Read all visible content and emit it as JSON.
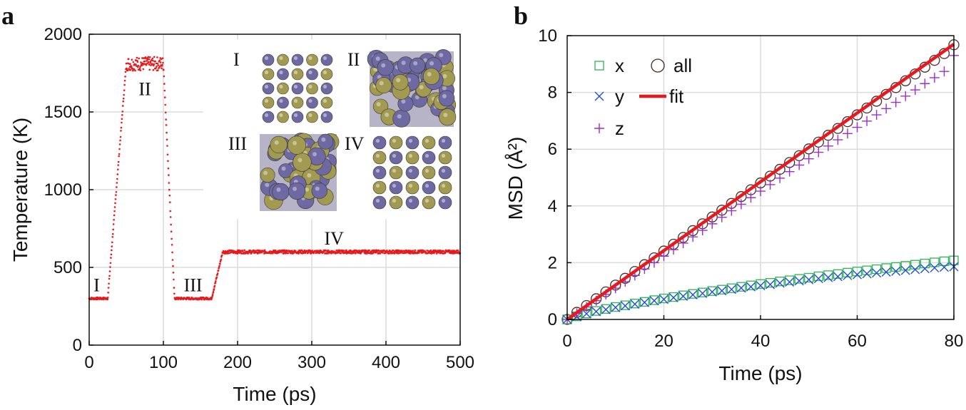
{
  "panel_a": {
    "letter": "a",
    "inset_labels": [
      "I",
      "II",
      "III",
      "IV"
    ]
  },
  "panel_b": {
    "letter": "b"
  },
  "colors": {
    "temperature": "#e8191c",
    "x_series": "#2fb353",
    "y_series": "#1f4fd6",
    "z_series": "#9b2fc9",
    "all_series": "#4a2a2a",
    "fit": "#e8191c",
    "grid": "#dcdcdc",
    "atom_gold": "#a39a52",
    "atom_purple": "#6e68a3"
  },
  "chart_data": [
    {
      "type": "scatter",
      "title": "",
      "xlabel": "Time (ps)",
      "ylabel": "Temperature (K)",
      "xlim": [
        0,
        500
      ],
      "ylim": [
        0,
        2000
      ],
      "xticks": [
        0,
        100,
        200,
        300,
        400,
        500
      ],
      "yticks": [
        0,
        500,
        1000,
        1500,
        2000
      ],
      "grid": true,
      "series": [
        {
          "name": "Temperature",
          "profile_x": [
            0,
            25,
            50,
            100,
            115,
            165,
            180,
            500
          ],
          "profile_y": [
            300,
            300,
            1810,
            1810,
            300,
            300,
            600,
            600
          ]
        }
      ],
      "stage_labels": [
        {
          "text": "I",
          "x": 10,
          "y": 300
        },
        {
          "text": "II",
          "x": 75,
          "y": 1810
        },
        {
          "text": "III",
          "x": 140,
          "y": 300
        },
        {
          "text": "IV",
          "x": 330,
          "y": 600
        }
      ]
    },
    {
      "type": "scatter",
      "title": "",
      "xlabel": "Time (ps)",
      "ylabel": "MSD (Å²)",
      "xlim": [
        0,
        80
      ],
      "ylim": [
        0,
        10
      ],
      "xticks": [
        0,
        20,
        40,
        60,
        80
      ],
      "yticks": [
        0,
        2,
        4,
        6,
        8,
        10
      ],
      "grid": true,
      "legend": {
        "placement": "top-left",
        "entries": [
          "x",
          "y",
          "z",
          "all",
          "fit"
        ]
      },
      "x": [
        0,
        2,
        4,
        6,
        8,
        10,
        12,
        14,
        16,
        18,
        20,
        22,
        24,
        26,
        28,
        30,
        32,
        34,
        36,
        38,
        40,
        42,
        44,
        46,
        48,
        50,
        52,
        54,
        56,
        58,
        60,
        62,
        64,
        66,
        68,
        70,
        72,
        74,
        76,
        78,
        80
      ],
      "series": [
        {
          "name": "x",
          "marker": "square",
          "values": [
            0,
            0.11,
            0.21,
            0.3,
            0.37,
            0.44,
            0.5,
            0.56,
            0.62,
            0.68,
            0.74,
            0.79,
            0.85,
            0.9,
            0.95,
            1.0,
            1.05,
            1.1,
            1.15,
            1.2,
            1.25,
            1.29,
            1.34,
            1.38,
            1.43,
            1.47,
            1.52,
            1.56,
            1.6,
            1.65,
            1.69,
            1.73,
            1.77,
            1.81,
            1.85,
            1.89,
            1.93,
            1.97,
            2.01,
            2.05,
            2.08
          ]
        },
        {
          "name": "y",
          "marker": "x",
          "values": [
            0,
            0.1,
            0.2,
            0.28,
            0.35,
            0.42,
            0.48,
            0.54,
            0.6,
            0.66,
            0.71,
            0.77,
            0.82,
            0.87,
            0.92,
            0.97,
            1.01,
            1.06,
            1.11,
            1.15,
            1.19,
            1.23,
            1.28,
            1.32,
            1.36,
            1.4,
            1.44,
            1.48,
            1.51,
            1.55,
            1.58,
            1.61,
            1.64,
            1.67,
            1.7,
            1.73,
            1.76,
            1.79,
            1.82,
            1.84,
            1.86
          ]
        },
        {
          "name": "z",
          "marker": "plus",
          "values": [
            0,
            0.22,
            0.44,
            0.66,
            0.88,
            1.1,
            1.33,
            1.55,
            1.78,
            2.0,
            2.23,
            2.46,
            2.69,
            2.91,
            3.14,
            3.37,
            3.6,
            3.83,
            4.06,
            4.29,
            4.52,
            4.75,
            4.98,
            5.21,
            5.44,
            5.66,
            5.89,
            6.11,
            6.33,
            6.55,
            6.77,
            6.99,
            7.21,
            7.43,
            7.65,
            7.87,
            8.09,
            8.31,
            8.52,
            8.74,
            9.3
          ]
        },
        {
          "name": "all",
          "marker": "circle",
          "values": [
            0,
            0.25,
            0.49,
            0.73,
            0.97,
            1.21,
            1.45,
            1.69,
            1.93,
            2.17,
            2.41,
            2.65,
            2.89,
            3.13,
            3.37,
            3.61,
            3.85,
            4.09,
            4.33,
            4.57,
            4.81,
            5.05,
            5.29,
            5.53,
            5.77,
            6.01,
            6.25,
            6.49,
            6.73,
            6.97,
            7.21,
            7.45,
            7.69,
            7.93,
            8.17,
            8.41,
            8.65,
            8.89,
            9.13,
            9.37,
            9.68
          ]
        },
        {
          "name": "fit",
          "marker": "line",
          "line_x": [
            0,
            80
          ],
          "line_y": [
            0,
            9.7
          ]
        }
      ]
    }
  ]
}
